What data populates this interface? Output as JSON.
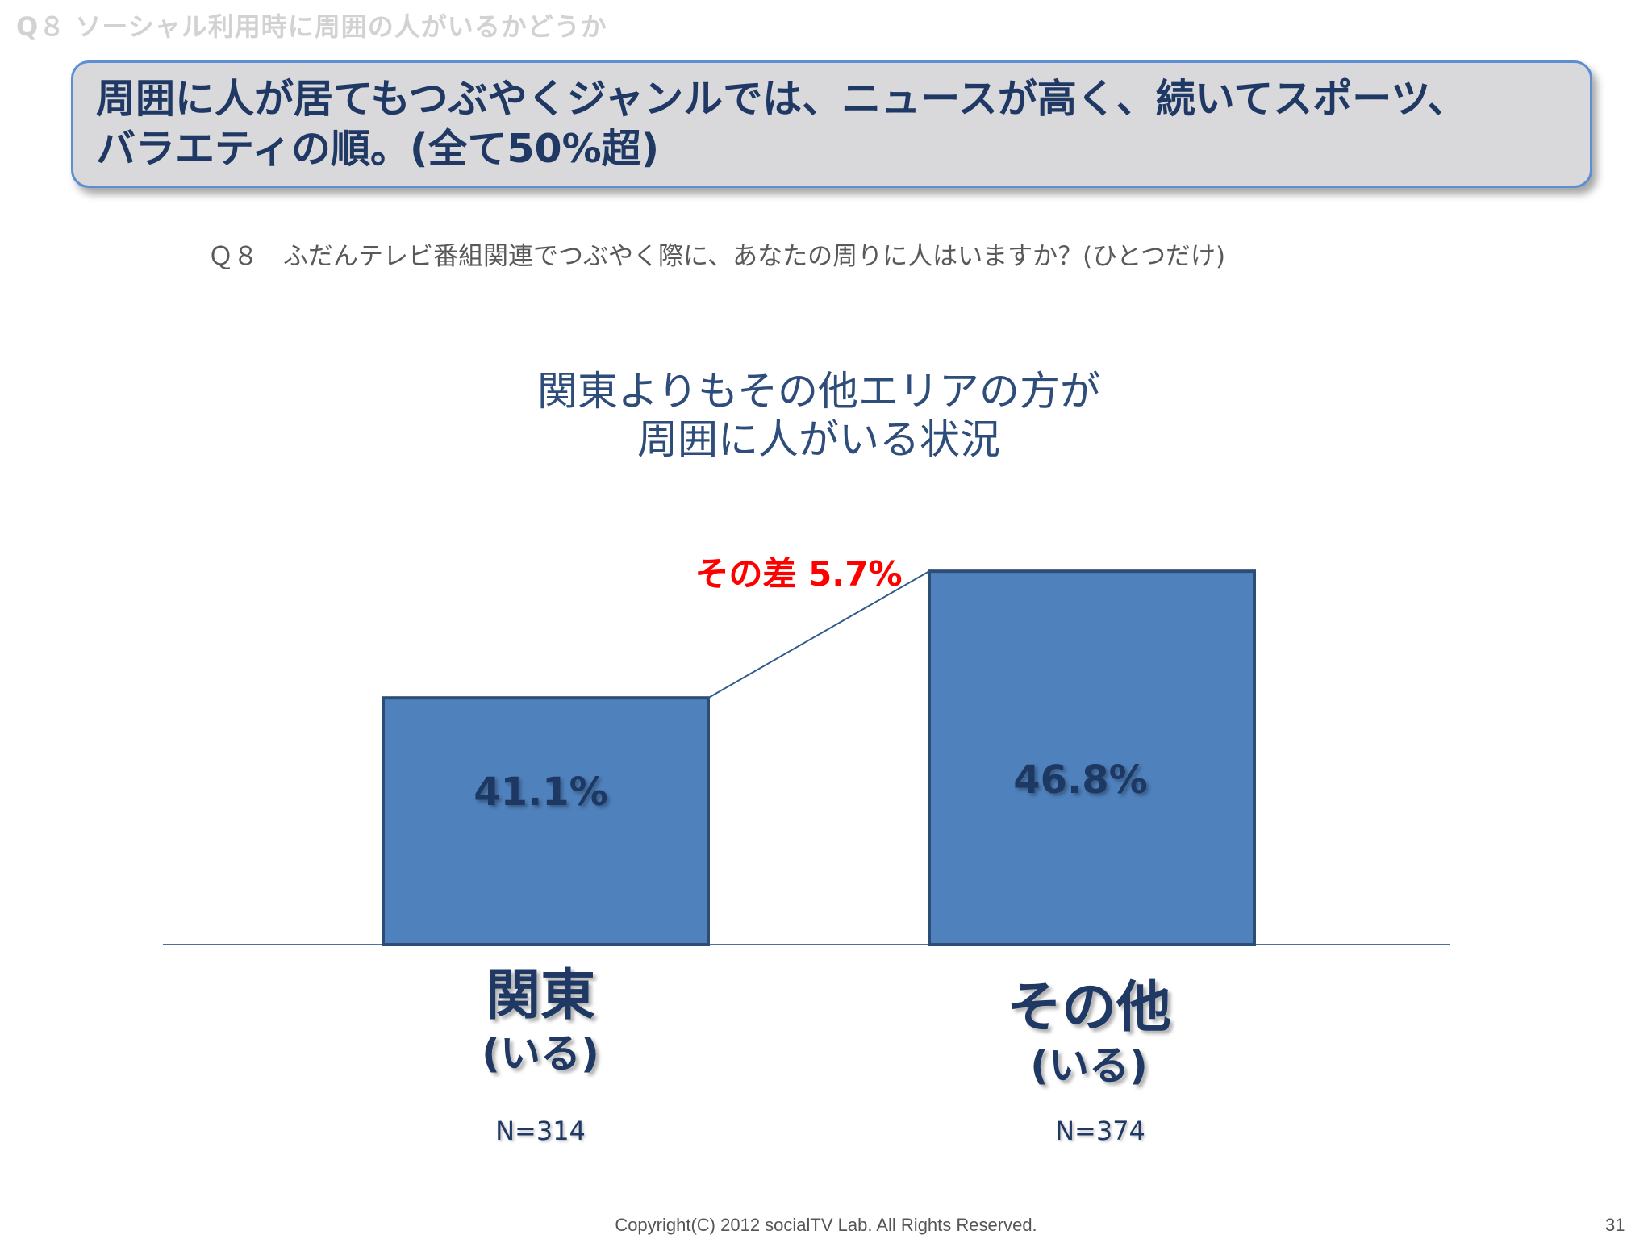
{
  "page_header": "Q８ ソーシャル利用時に周囲の人がいるかどうか",
  "headline": {
    "line1": "周囲に人が居てもつぶやくジャンルでは、ニュースが高く、続いてスポーツ、",
    "line2": "バラエティの順。(全て50%超)"
  },
  "question": "Ｑ８　ふだんテレビ番組関連でつぶやく際に、あなたの周りに人はいますか？(ひとつだけ)",
  "difference_label": "その差 5.7%",
  "categories_display": [
    {
      "name": "関東",
      "sub": "(いる)",
      "n": "N=314"
    },
    {
      "name": "その他",
      "sub": "(いる)",
      "n": "N=374"
    }
  ],
  "chart_data": {
    "type": "bar",
    "title": "関東よりもその他エリアの方が\n周囲に人がいる状況",
    "title_lines": [
      "関東よりもその他エリアの方が",
      "周囲に人がいる状況"
    ],
    "categories": [
      "関東",
      "その他"
    ],
    "values": [
      41.1,
      46.8
    ],
    "value_labels": [
      "41.1%",
      "46.8%"
    ],
    "ylim": [
      30,
      50
    ],
    "difference": 5.7,
    "grid": false,
    "legend": "none",
    "colors": {
      "bar_fill": "#4f81bd",
      "bar_stroke": "#2c4d75",
      "label": "#1f3864",
      "connector": "#2e5a8c"
    }
  },
  "footer": {
    "copyright": "Copyright(C) 2012 socialTV Lab. All Rights Reserved.",
    "page_number": "31"
  }
}
